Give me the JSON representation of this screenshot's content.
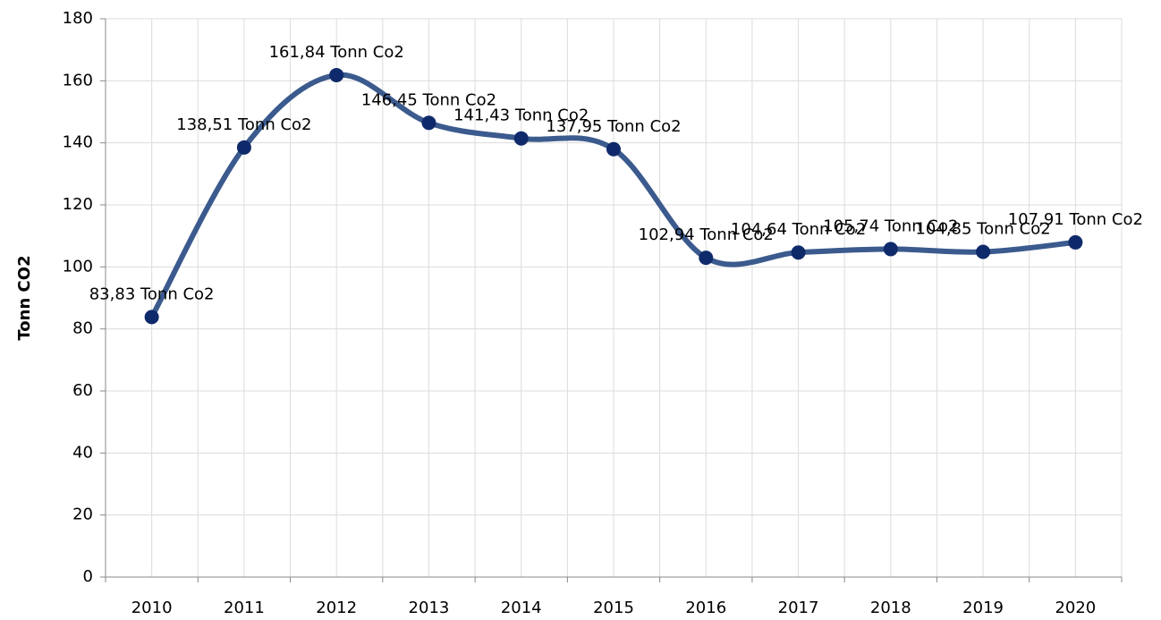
{
  "chart_data": {
    "type": "line",
    "y_label": "Tonn CO2",
    "categories": [
      "2010",
      "2011",
      "2012",
      "2013",
      "2014",
      "2015",
      "2016",
      "2017",
      "2018",
      "2019",
      "2020"
    ],
    "series": [
      {
        "name": "Tonn Co2",
        "color": "#3b5a8d",
        "marker_color": "#0f2a6a",
        "values": [
          83.83,
          138.51,
          161.84,
          146.45,
          141.43,
          137.95,
          102.94,
          104.64,
          105.74,
          104.85,
          107.91
        ],
        "value_labels": [
          "83,83 Tonn Co2",
          "138,51 Tonn Co2",
          "161,84 Tonn Co2",
          "146,45 Tonn Co2",
          "141,43 Tonn Co2",
          "137,95 Tonn Co2",
          "102,94 Tonn Co2",
          "104,64 Tonn Co2",
          "105,74 Tonn Co2",
          "104,85 Tonn Co2",
          "107,91 Tonn Co2"
        ]
      }
    ],
    "ylim": [
      0,
      180
    ],
    "yticks": [
      0,
      20,
      40,
      60,
      80,
      100,
      120,
      140,
      160,
      180
    ],
    "grid": true,
    "smooth": true
  }
}
